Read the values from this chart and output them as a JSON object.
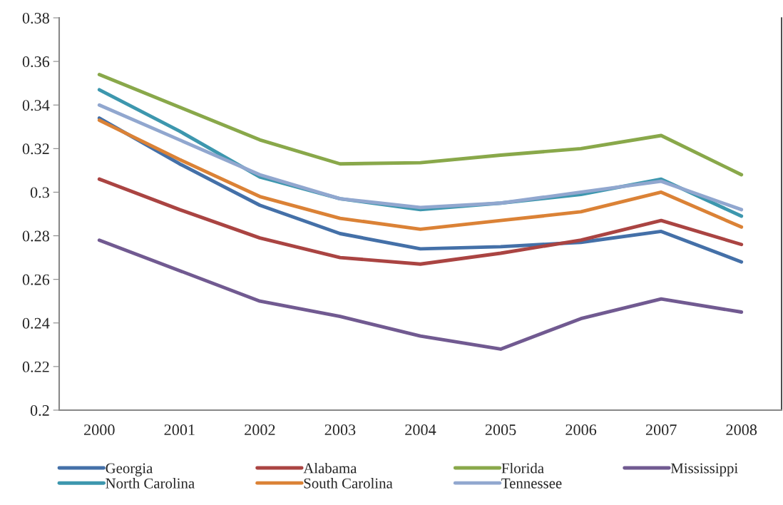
{
  "chart_data": {
    "type": "line",
    "categories": [
      "2000",
      "2001",
      "2002",
      "2003",
      "2004",
      "2005",
      "2006",
      "2007",
      "2008"
    ],
    "ylim": [
      0.2,
      0.38
    ],
    "yticks": [
      0.2,
      0.22,
      0.24,
      0.26,
      0.28,
      0.3,
      0.32,
      0.34,
      0.36,
      0.38
    ],
    "grid": false,
    "legend": "bottom",
    "marker": "none",
    "line_style": "solid",
    "series": [
      {
        "name": "Georgia",
        "color": "#4470a8",
        "values": [
          0.334,
          0.313,
          0.294,
          0.281,
          0.274,
          0.275,
          0.277,
          0.282,
          0.268
        ]
      },
      {
        "name": "Alabama",
        "color": "#aa4442",
        "values": [
          0.306,
          0.292,
          0.279,
          0.27,
          0.267,
          0.272,
          0.278,
          0.287,
          0.276
        ]
      },
      {
        "name": "Florida",
        "color": "#89a84a",
        "values": [
          0.354,
          0.339,
          0.324,
          0.313,
          0.3135,
          0.317,
          0.32,
          0.326,
          0.308
        ]
      },
      {
        "name": "Mississippi",
        "color": "#715a91",
        "values": [
          0.278,
          0.264,
          0.25,
          0.243,
          0.234,
          0.228,
          0.242,
          0.251,
          0.245
        ]
      },
      {
        "name": "North Carolina",
        "color": "#3d97ae",
        "values": [
          0.347,
          0.328,
          0.307,
          0.297,
          0.292,
          0.295,
          0.299,
          0.306,
          0.289
        ]
      },
      {
        "name": "South Carolina",
        "color": "#db8236",
        "values": [
          0.333,
          0.315,
          0.298,
          0.288,
          0.283,
          0.287,
          0.291,
          0.3,
          0.284
        ]
      },
      {
        "name": "Tennessee",
        "color": "#91a7cf",
        "values": [
          0.34,
          0.324,
          0.308,
          0.297,
          0.293,
          0.295,
          0.3,
          0.305,
          0.292
        ]
      }
    ]
  }
}
